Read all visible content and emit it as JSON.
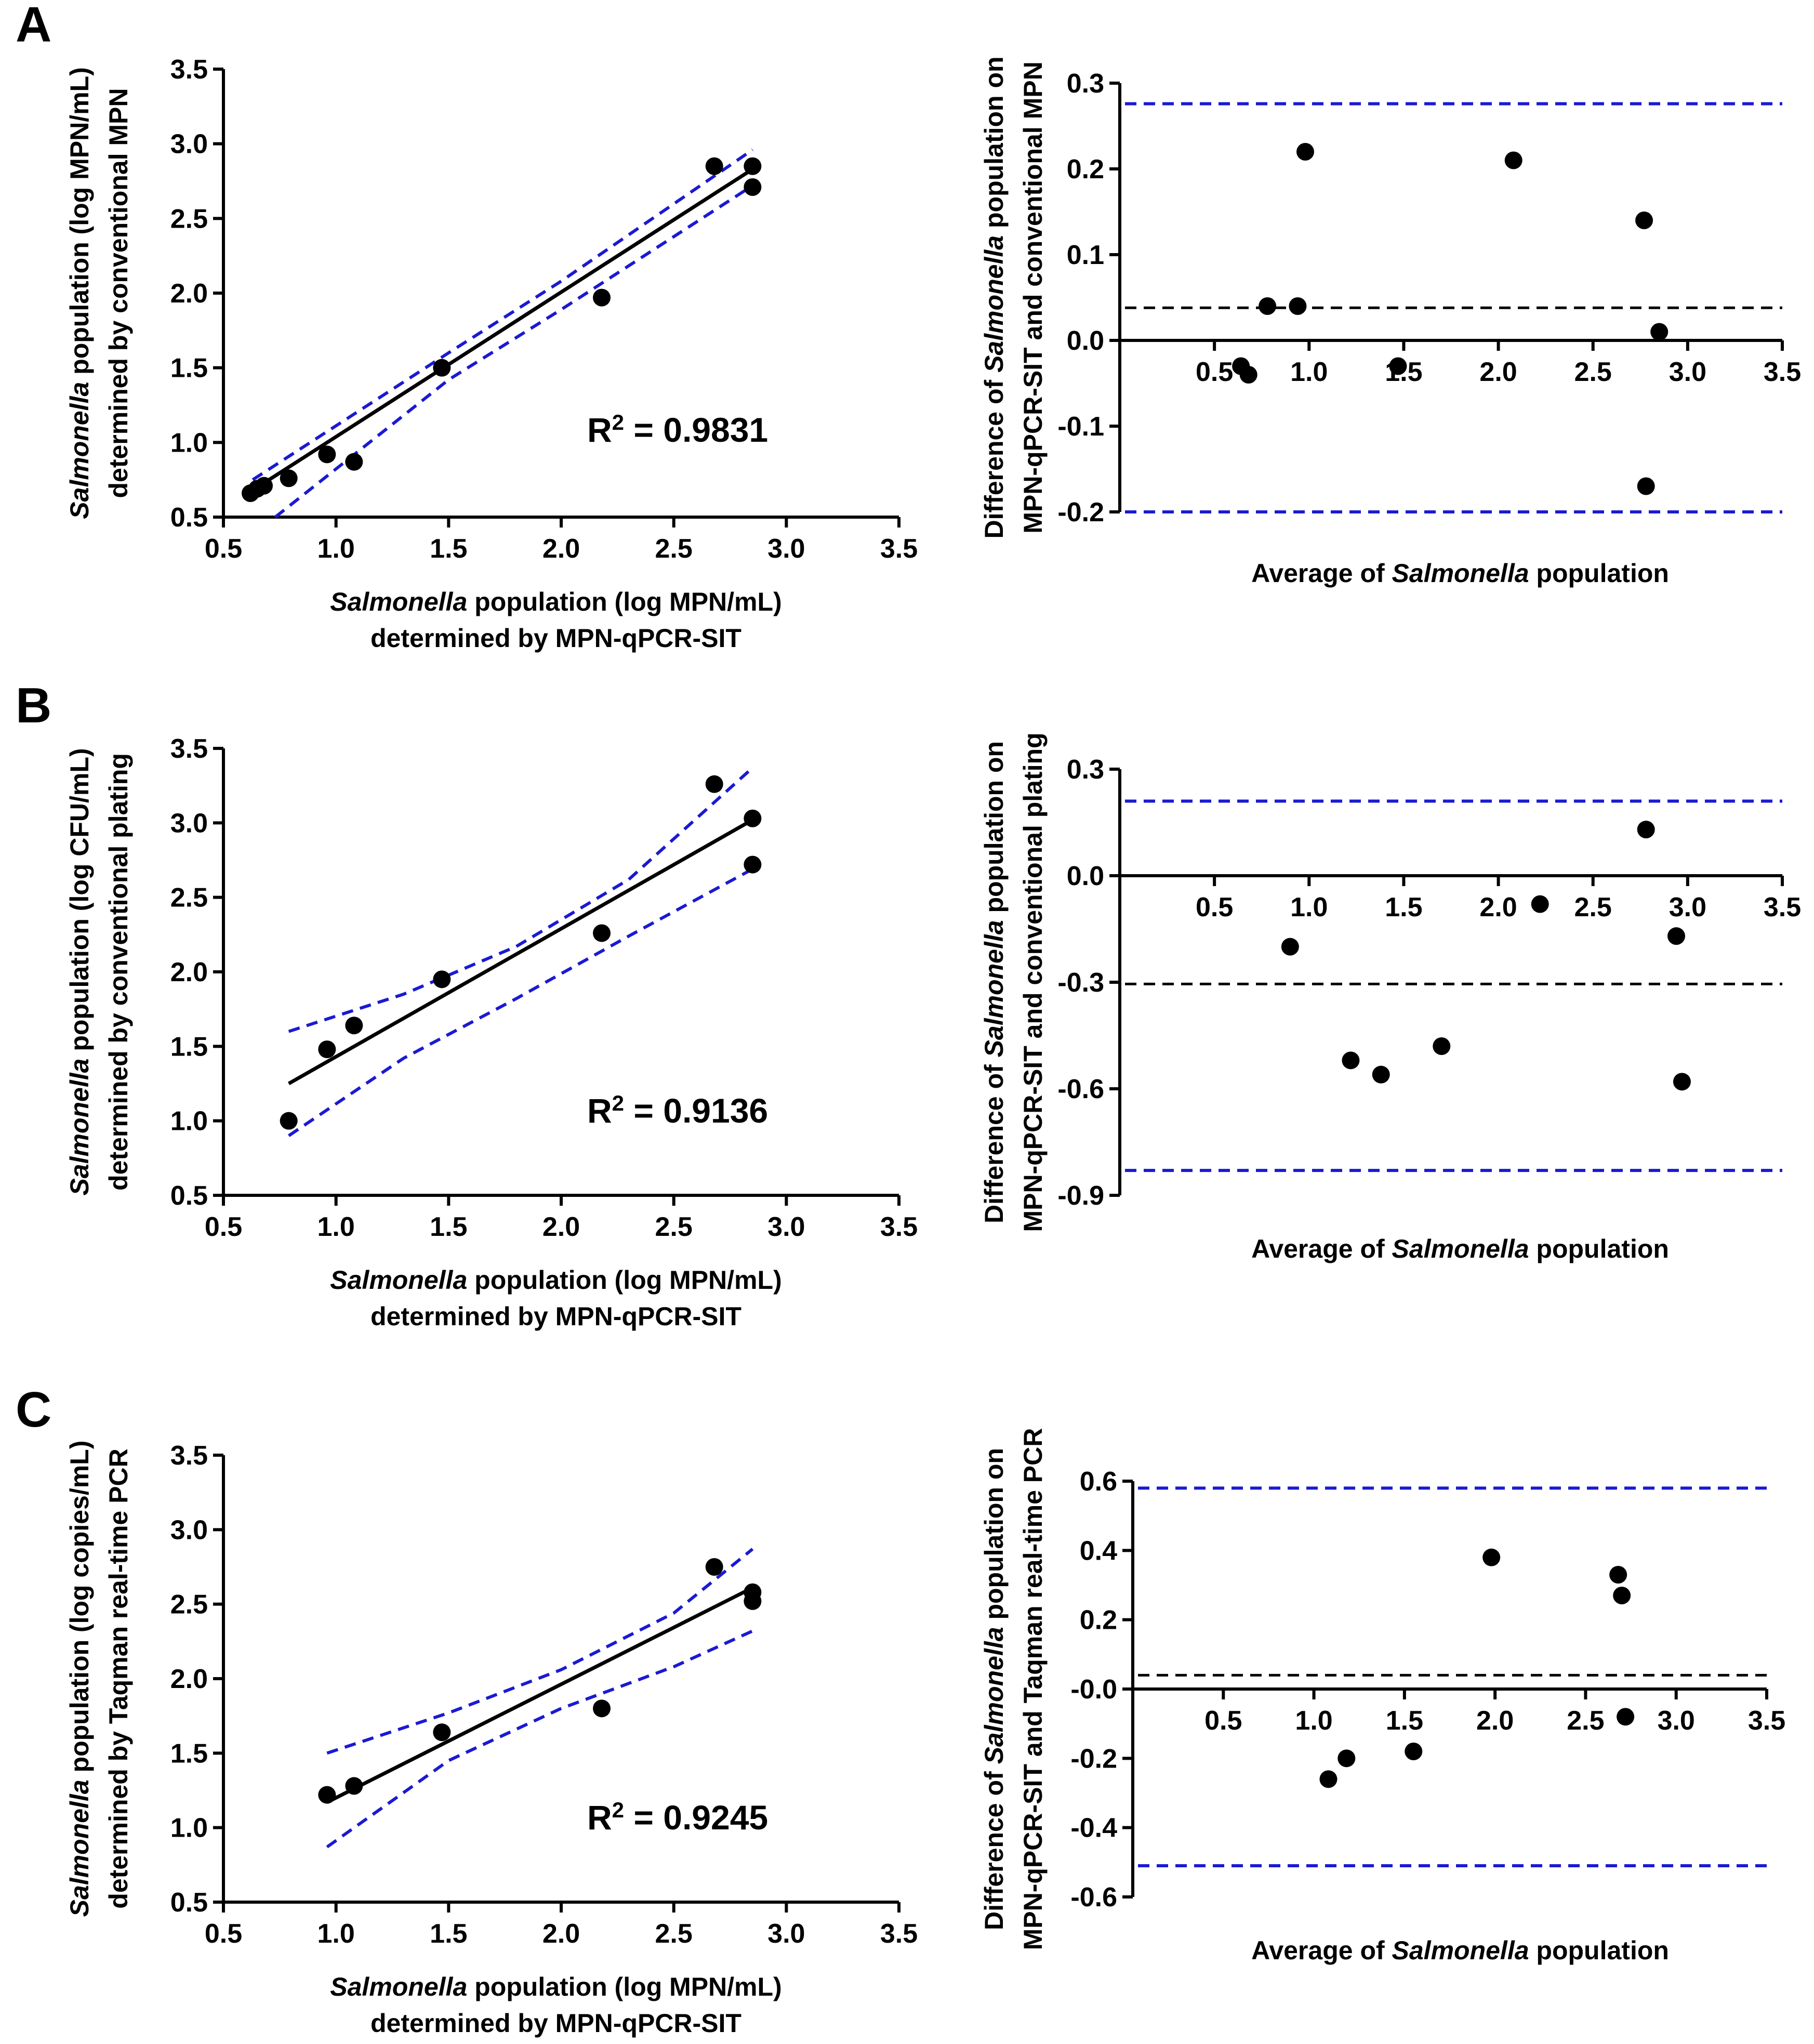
{
  "chart_data": [
    {
      "panel": "A",
      "type": "scatter",
      "subtype": "regression",
      "title": "",
      "xlabel": {
        "italic": "Salmonella",
        "rest": " population (log MPN/mL)",
        "line2": "determined by MPN-qPCR-SIT"
      },
      "ylabel": {
        "italic": "Salmonella",
        "rest": " population (log MPN/mL)",
        "line2": "determined by conventional MPN"
      },
      "xlim": [
        0.5,
        3.5
      ],
      "ylim": [
        0.5,
        3.5
      ],
      "xticks": [
        "0.5",
        "1.0",
        "1.5",
        "2.0",
        "2.5",
        "3.0",
        "3.5"
      ],
      "yticks": [
        "0.5",
        "1.0",
        "1.5",
        "2.0",
        "2.5",
        "3.0",
        "3.5"
      ],
      "annotation": {
        "r2_prefix": "R",
        "r2_sup": "2",
        "r2_value": " = 0.9831"
      },
      "x": [
        0.62,
        0.65,
        0.68,
        0.79,
        0.96,
        1.08,
        1.47,
        2.18,
        2.68,
        2.85,
        2.85
      ],
      "y": [
        0.66,
        0.69,
        0.71,
        0.76,
        0.92,
        0.87,
        1.5,
        1.97,
        2.85,
        2.85,
        2.71
      ],
      "fit": [
        [
          0.62,
          0.67
        ],
        [
          2.85,
          2.83
        ]
      ],
      "ci_upper": [
        [
          0.63,
          0.75
        ],
        [
          1.5,
          1.6
        ],
        [
          2.0,
          2.08
        ],
        [
          2.85,
          2.96
        ]
      ],
      "ci_lower": [
        [
          0.73,
          0.5
        ],
        [
          1.5,
          1.42
        ],
        [
          2.0,
          1.89
        ],
        [
          2.85,
          2.72
        ]
      ]
    },
    {
      "panel": "A",
      "type": "scatter",
      "subtype": "bland-altman",
      "xlabel": {
        "prefix": "Average of ",
        "italic": "Salmonella",
        "rest": " population"
      },
      "ylabel": {
        "prefix": "Difference of ",
        "italic": "Salmonella",
        "rest": " population on",
        "line2": "MPN-qPCR-SIT and conventional MPN"
      },
      "xlim": [
        0,
        3.5
      ],
      "ylim": [
        -0.2,
        0.3
      ],
      "xticks": [
        "0.5",
        "1.0",
        "1.5",
        "2.0",
        "2.5",
        "3.0",
        "3.5"
      ],
      "yticks": [
        "-0.2",
        "-0.1",
        "0.0",
        "0.1",
        "0.2",
        "0.3"
      ],
      "mean_diff": 0.038,
      "loa_upper": 0.276,
      "loa_lower": -0.2,
      "x": [
        0.64,
        0.68,
        0.78,
        0.94,
        0.98,
        1.47,
        2.08,
        2.77,
        2.78,
        2.85
      ],
      "y": [
        -0.03,
        -0.04,
        0.04,
        0.04,
        0.22,
        -0.03,
        0.21,
        0.14,
        -0.17,
        0.01
      ]
    },
    {
      "panel": "B",
      "type": "scatter",
      "subtype": "regression",
      "xlabel": {
        "italic": "Salmonella",
        "rest": " population (log MPN/mL)",
        "line2": "determined by MPN-qPCR-SIT"
      },
      "ylabel": {
        "italic": "Salmonella",
        "rest": " population (log CFU/mL)",
        "line2": "determined by conventional plating"
      },
      "xlim": [
        0.5,
        3.5
      ],
      "ylim": [
        0.5,
        3.5
      ],
      "xticks": [
        "0.5",
        "1.0",
        "1.5",
        "2.0",
        "2.5",
        "3.0",
        "3.5"
      ],
      "yticks": [
        "0.5",
        "1.0",
        "1.5",
        "2.0",
        "2.5",
        "3.0",
        "3.5"
      ],
      "annotation": {
        "r2_prefix": "R",
        "r2_sup": "2",
        "r2_value": " = 0.9136"
      },
      "x": [
        0.79,
        0.96,
        1.08,
        1.47,
        2.18,
        2.68,
        2.85,
        2.85
      ],
      "y": [
        1.0,
        1.48,
        1.64,
        1.95,
        2.26,
        3.26,
        3.03,
        2.72
      ],
      "fit": [
        [
          0.79,
          1.25
        ],
        [
          2.85,
          3.02
        ]
      ],
      "ci_upper": [
        [
          0.79,
          1.6
        ],
        [
          1.3,
          1.85
        ],
        [
          1.8,
          2.17
        ],
        [
          2.3,
          2.62
        ],
        [
          2.85,
          3.37
        ]
      ],
      "ci_lower": [
        [
          0.79,
          0.9
        ],
        [
          1.3,
          1.42
        ],
        [
          1.8,
          1.82
        ],
        [
          2.3,
          2.24
        ],
        [
          2.85,
          2.69
        ]
      ]
    },
    {
      "panel": "B",
      "type": "scatter",
      "subtype": "bland-altman",
      "xlabel": {
        "prefix": "Average of ",
        "italic": "Salmonella",
        "rest": " population"
      },
      "ylabel": {
        "prefix": "Difference of ",
        "italic": "Salmonella",
        "rest": " population on",
        "line2": "MPN-qPCR-SIT and conventional plating"
      },
      "xlim": [
        0,
        3.5
      ],
      "ylim": [
        -0.9,
        0.3
      ],
      "xticks": [
        "0.5",
        "1.0",
        "1.5",
        "2.0",
        "2.5",
        "3.0",
        "3.5"
      ],
      "yticks": [
        "-0.9",
        "-0.6",
        "-0.3",
        "0.0",
        "0.3"
      ],
      "mean_diff": -0.305,
      "loa_upper": 0.21,
      "loa_lower": -0.83,
      "x": [
        0.9,
        1.22,
        1.38,
        1.7,
        2.22,
        2.78,
        2.94,
        2.97
      ],
      "y": [
        -0.2,
        -0.52,
        -0.56,
        -0.48,
        -0.08,
        0.13,
        -0.17,
        -0.58
      ]
    },
    {
      "panel": "C",
      "type": "scatter",
      "subtype": "regression",
      "xlabel": {
        "italic": "Salmonella",
        "rest": " population (log MPN/mL)",
        "line2": "determined by MPN-qPCR-SIT"
      },
      "ylabel": {
        "italic": "Salmonella",
        "rest": " population (log copies/mL)",
        "line2": "determined by Taqman real-time PCR"
      },
      "xlim": [
        0.5,
        3.5
      ],
      "ylim": [
        0.5,
        3.5
      ],
      "xticks": [
        "0.5",
        "1.0",
        "1.5",
        "2.0",
        "2.5",
        "3.0",
        "3.5"
      ],
      "yticks": [
        "0.5",
        "1.0",
        "1.5",
        "2.0",
        "2.5",
        "3.0",
        "3.5"
      ],
      "annotation": {
        "r2_prefix": "R",
        "r2_sup": "2",
        "r2_value": " = 0.9245"
      },
      "x": [
        0.96,
        1.08,
        1.47,
        2.18,
        2.68,
        2.85,
        2.85
      ],
      "y": [
        1.22,
        1.28,
        1.64,
        1.8,
        2.75,
        2.58,
        2.52
      ],
      "fit": [
        [
          0.96,
          1.17
        ],
        [
          2.85,
          2.61
        ]
      ],
      "ci_upper": [
        [
          0.96,
          1.5
        ],
        [
          1.5,
          1.77
        ],
        [
          2.0,
          2.06
        ],
        [
          2.5,
          2.44
        ],
        [
          2.85,
          2.87
        ]
      ],
      "ci_lower": [
        [
          0.96,
          0.87
        ],
        [
          1.5,
          1.45
        ],
        [
          2.0,
          1.8
        ],
        [
          2.5,
          2.08
        ],
        [
          2.85,
          2.32
        ]
      ]
    },
    {
      "panel": "C",
      "type": "scatter",
      "subtype": "bland-altman",
      "xlabel": {
        "prefix": "Average of ",
        "italic": "Salmonella",
        "rest": " population"
      },
      "ylabel": {
        "prefix": "Difference of ",
        "italic": "Salmonella",
        "rest": " population on",
        "line2": "MPN-qPCR-SIT and Taqman real-time PCR"
      },
      "xlim": [
        0,
        3.5
      ],
      "ylim": [
        -0.6,
        0.6
      ],
      "xticks": [
        "0.5",
        "1.0",
        "1.5",
        "2.0",
        "2.5",
        "3.0",
        "3.5"
      ],
      "yticks": [
        "-0.6",
        "-0.4",
        "-0.2",
        "-0.0",
        "0.2",
        "0.4",
        "0.6"
      ],
      "mean_diff": 0.04,
      "loa_upper": 0.58,
      "loa_lower": -0.51,
      "x": [
        1.08,
        1.18,
        1.55,
        1.98,
        2.68,
        2.7,
        2.72
      ],
      "y": [
        -0.26,
        -0.2,
        -0.18,
        0.38,
        0.33,
        0.27,
        -0.08
      ]
    }
  ]
}
